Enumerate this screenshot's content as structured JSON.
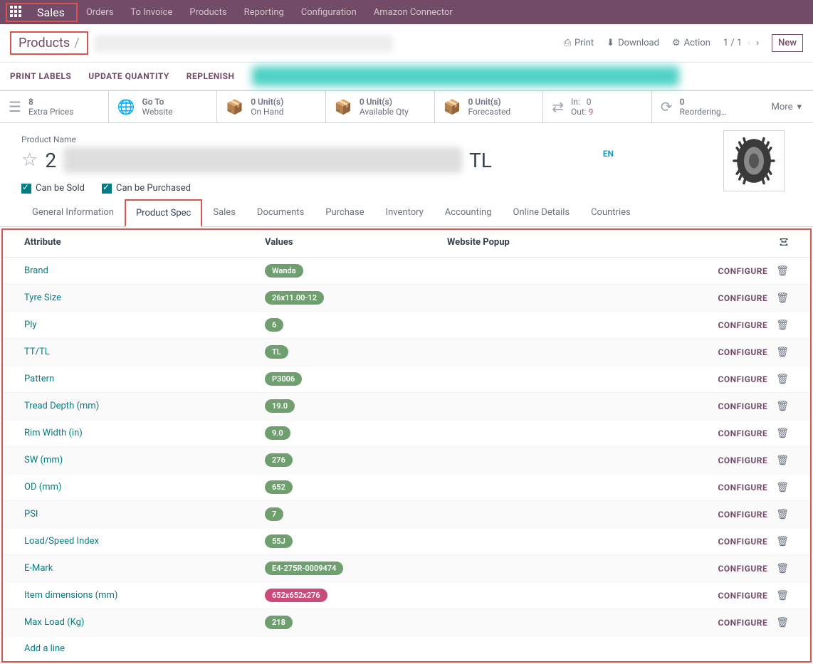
{
  "nav": {
    "active": "Sales",
    "items": [
      "Orders",
      "To Invoice",
      "Products",
      "Reporting",
      "Configuration",
      "Amazon Connector"
    ]
  },
  "breadcrumb": {
    "root": "Products",
    "actions": {
      "print": "Print",
      "download": "Download",
      "action": "Action",
      "pager": "1 / 1",
      "new": "New"
    }
  },
  "subActions": [
    "PRINT LABELS",
    "UPDATE QUANTITY",
    "REPLENISH"
  ],
  "stats": [
    {
      "line1": "8",
      "line2": "Extra Prices",
      "icon": "list"
    },
    {
      "line1": "Go To",
      "line2": "Website",
      "icon": "globe"
    },
    {
      "line1": "0 Unit(s)",
      "line2": "On Hand",
      "icon": "box"
    },
    {
      "line1": "0 Unit(s)",
      "line2": "Available Qty",
      "icon": "box"
    },
    {
      "line1": "0 Unit(s)",
      "line2": "Forecasted",
      "icon": "box"
    },
    {
      "type": "inout",
      "in_label": "In:",
      "in_val": "0",
      "out_label": "Out:",
      "out_val": "9"
    },
    {
      "line1": "0",
      "line2": "Reordering…",
      "icon": "sync"
    }
  ],
  "more": "More",
  "product": {
    "label": "Product Name",
    "prefix": "2",
    "suffix": "TL",
    "lang": "EN",
    "canSold": "Can be Sold",
    "canPurchased": "Can be Purchased"
  },
  "tabs": [
    "General Information",
    "Product Spec",
    "Sales",
    "Documents",
    "Purchase",
    "Inventory",
    "Accounting",
    "Online Details",
    "Countries"
  ],
  "activeTab": "Product Spec",
  "specHeader": {
    "attr": "Attribute",
    "val": "Values",
    "web": "Website Popup"
  },
  "specs": [
    {
      "attr": "Brand",
      "val": "Wanda",
      "magenta": false
    },
    {
      "attr": "Tyre Size",
      "val": "26x11.00-12",
      "magenta": false
    },
    {
      "attr": "Ply",
      "val": "6",
      "magenta": false
    },
    {
      "attr": "TT/TL",
      "val": "TL",
      "magenta": false
    },
    {
      "attr": "Pattern",
      "val": "P3006",
      "magenta": false
    },
    {
      "attr": "Tread Depth (mm)",
      "val": "19.0",
      "magenta": false
    },
    {
      "attr": "Rim Width (in)",
      "val": "9.0",
      "magenta": false
    },
    {
      "attr": "SW (mm)",
      "val": "276",
      "magenta": false
    },
    {
      "attr": "OD (mm)",
      "val": "652",
      "magenta": false
    },
    {
      "attr": "PSI",
      "val": "7",
      "magenta": false
    },
    {
      "attr": "Load/Speed Index",
      "val": "55J",
      "magenta": false
    },
    {
      "attr": "E-Mark",
      "val": "E4-275R-0009474",
      "magenta": false
    },
    {
      "attr": "Item dimensions (mm)",
      "val": "652x652x276",
      "magenta": true
    },
    {
      "attr": "Max Load (Kg)",
      "val": "218",
      "magenta": false
    }
  ],
  "configure": "CONFIGURE",
  "addLine": "Add a line"
}
